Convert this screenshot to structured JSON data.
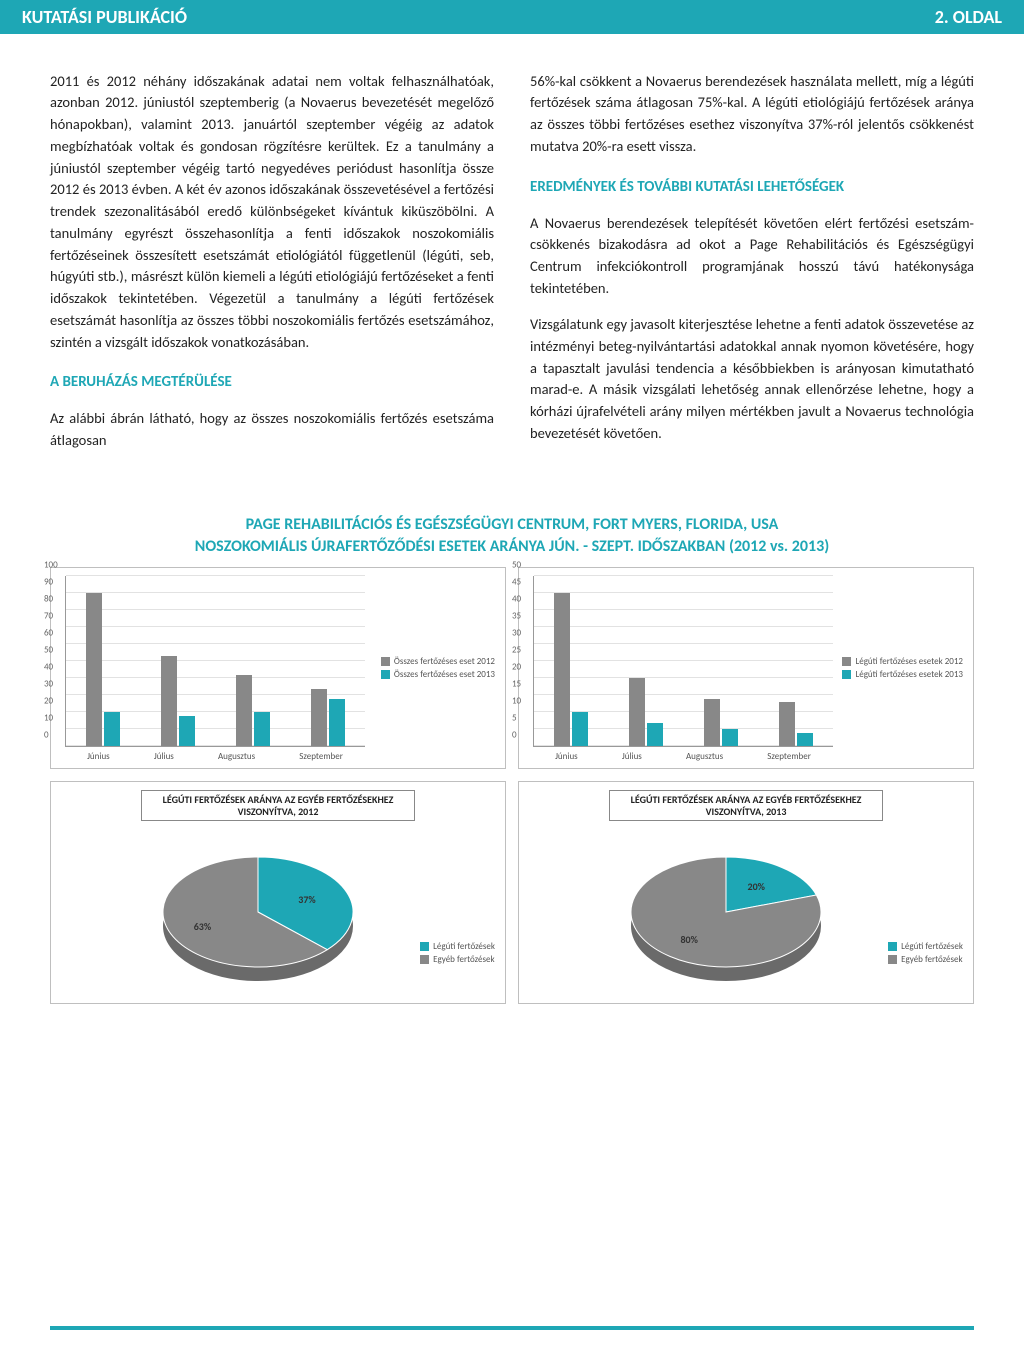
{
  "header": {
    "left": "KUTATÁSI PUBLIKÁCIÓ",
    "right": "2. OLDAL"
  },
  "colors": {
    "accent": "#1ea7b5",
    "grey": "#888888",
    "border": "#bfbfbf",
    "text": "#222222"
  },
  "left_col": {
    "p1": "2011 és 2012 néhány időszakának adatai nem voltak felhasználhatóak, azonban 2012. júniustól szeptemberig (a Novaerus bevezetését megelőző hónapokban), valamint 2013. januártól szeptember végéig az adatok megbízhatóak voltak és gondosan rögzítésre kerültek. Ez a tanulmány a júniustól szeptember végéig tartó negyedéves periódust hasonlítja össze 2012 és 2013 évben. A két év azonos időszakának összevetésével a fertőzési trendek szezonalitásából eredő különbségeket kívántuk kiküszöbölni. A tanulmány egyrészt összehasonlítja a fenti időszakok noszokomiális fertőzéseinek összesített esetszámát etiológiától függetlenül (légúti, seb, húgyúti stb.), másrészt külön kiemeli a légúti etiológiájú fertőzéseket a fenti időszakok tekintetében. Végezetül a tanulmány a légúti fertőzések esetszámát hasonlítja az összes többi noszokomiális fertőzés esetszámához, szintén a vizsgált időszakok vonatkozásában.",
    "h2": "A BERUHÁZÁS MEGTÉRÜLÉSE",
    "p2": "Az alábbi ábrán látható, hogy az összes noszokomiális fertőzés esetszáma átlagosan"
  },
  "right_col": {
    "p1": "56%-kal csökkent a Novaerus berendezések használata mellett, míg a légúti fertőzések száma átlagosan 75%-kal. A légúti etiológiájú fertőzések aránya az összes többi fertőzéses esethez viszonyítva 37%-ról jelentős csökkenést mutatva 20%-ra esett vissza.",
    "h2": "EREDMÉNYEK ÉS TOVÁBBI KUTATÁSI LEHETŐSÉGEK",
    "p2": "A Novaerus berendezések telepítését követően elért fertőzési esetszám-csökkenés bizakodásra ad okot a Page Rehabilitációs és Egészségügyi Centrum infekciókontroll programjának hosszú távú hatékonysága tekintetében.",
    "p3": "Vizsgálatunk egy javasolt kiterjesztése lehetne a fenti adatok összevetése az intézményi beteg-nyilvántartási adatokkal annak nyomon követésére, hogy a tapasztalt javulási tendencia a későbbiekben is arányosan kimutatható marad-e. A másik vizsgálati lehetőség annak ellenőrzése lehetne, hogy a kórházi újrafelvételi arány milyen mértékben javult a Novaerus technológia bevezetését követően."
  },
  "chart_block_title": "PAGE REHABILITÁCIÓS ÉS EGÉSZSÉGÜGYI CENTRUM, FORT MYERS, FLORIDA, USA\nNOSZOKOMIÁLIS ÚJRAFERTŐZŐDÉSI ESETEK ARÁNYA JÚN. - SZEPT. IDŐSZAKBAN (2012 vs. 2013)",
  "bar_left": {
    "type": "bar",
    "ymax": 100,
    "ystep": 10,
    "categories": [
      "Június",
      "Július",
      "Augusztus",
      "Szeptember"
    ],
    "series": [
      {
        "name": "Összes fertőzéses eset 2012",
        "color": "#888888",
        "values": [
          90,
          53,
          42,
          34
        ]
      },
      {
        "name": "Összes fertőzéses eset 2013",
        "color": "#1ea7b5",
        "values": [
          20,
          18,
          20,
          28
        ]
      }
    ]
  },
  "bar_right": {
    "type": "bar",
    "ymax": 50,
    "ystep": 5,
    "categories": [
      "Június",
      "Július",
      "Augusztus",
      "Szeptember"
    ],
    "series": [
      {
        "name": "Légúti fertőzéses esetek 2012",
        "color": "#888888",
        "values": [
          45,
          20,
          14,
          13
        ]
      },
      {
        "name": "Légúti fertőzéses esetek 2013",
        "color": "#1ea7b5",
        "values": [
          10,
          7,
          5,
          4
        ]
      }
    ]
  },
  "pie_left": {
    "type": "pie",
    "title": "LÉGÚTI FERTŐZÉSEK ARÁNYA AZ EGYÉB FERTŐZÉSEKHEZ VISZONYÍTVA, 2012",
    "slices": [
      {
        "name": "Légúti fertőzések",
        "color": "#1ea7b5",
        "pct": 37,
        "label": "37%"
      },
      {
        "name": "Egyéb fertőzések",
        "color": "#888888",
        "pct": 63,
        "label": "63%"
      }
    ]
  },
  "pie_right": {
    "type": "pie",
    "title": "LÉGÚTI FERTŐZÉSEK ARÁNYA AZ EGYÉB FERTŐZÉSEKHEZ VISZONYÍTVA, 2013",
    "slices": [
      {
        "name": "Légúti fertőzések",
        "color": "#1ea7b5",
        "pct": 20,
        "label": "20%"
      },
      {
        "name": "Egyéb fertőzések",
        "color": "#888888",
        "pct": 80,
        "label": "80%"
      }
    ]
  }
}
